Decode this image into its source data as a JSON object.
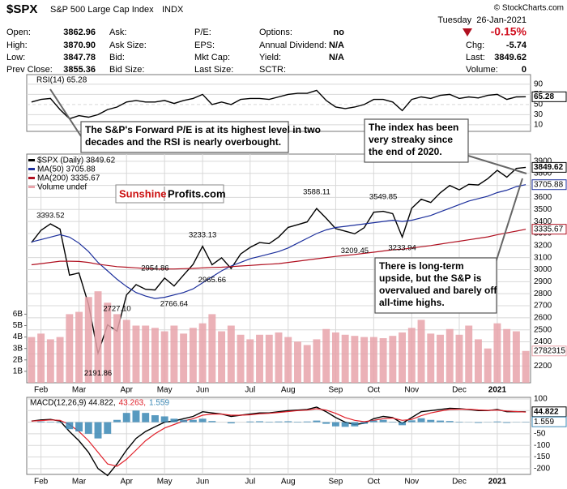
{
  "header": {
    "symbol": "$SPX",
    "name": "S&P 500 Large Cap Index",
    "exchange": "INDX",
    "copyright": "© StockCharts.com",
    "date": "Tuesday  26-Jan-2021",
    "change_pct": "-0.15%",
    "columns": [
      {
        "labels": [
          "Open:",
          "High:",
          "Low:",
          "Prev Close:"
        ],
        "values": [
          "3862.96",
          "3870.90",
          "3847.78",
          "3855.36"
        ]
      },
      {
        "labels": [
          "Ask:",
          "Ask Size:",
          "Bid:",
          "Bid Size:"
        ],
        "values": []
      },
      {
        "labels": [
          "P/E:",
          "EPS:",
          "Mkt Cap:",
          "Last Size:"
        ],
        "values": []
      },
      {
        "labels": [
          "Options:",
          "Annual Dividend:",
          "Yield:",
          "SCTR:"
        ],
        "values": [
          "no",
          "N/A",
          "N/A"
        ]
      },
      {
        "labels": [
          "Chg:",
          "Last:",
          "Volume:"
        ],
        "values": [
          "-5.74",
          "3849.62",
          "0"
        ]
      }
    ]
  },
  "watermark": [
    "Sunshine",
    "Profits.com"
  ],
  "callouts": [
    {
      "lines": [
        "The S&P's Forward P/E is at its highest level in two",
        "decades and the RSI is nearly overbought."
      ]
    },
    {
      "lines": [
        "The index has been",
        "very streaky since",
        "the end of 2020."
      ]
    },
    {
      "lines": [
        "There is long-term",
        "upside, but the S&P is",
        "overvalued and barely off",
        "all-time highs."
      ]
    }
  ],
  "chart_data": [
    {
      "type": "line",
      "title": "RSI(14) 65.28",
      "ylim": [
        -3,
        109
      ],
      "yticks": [
        90,
        70,
        50,
        30,
        10
      ],
      "grid": true,
      "series": [
        {
          "color": "#000000",
          "values": [
            55,
            60,
            62,
            40,
            22,
            28,
            25,
            30,
            40,
            45,
            55,
            58,
            55,
            55,
            58,
            52,
            58,
            62,
            70,
            50,
            55,
            50,
            60,
            62,
            62,
            60,
            65,
            70,
            72,
            72,
            78,
            58,
            45,
            42,
            45,
            50,
            60,
            60,
            55,
            38,
            60,
            65,
            62,
            68,
            70,
            62,
            65,
            63,
            68,
            70,
            60,
            65,
            65.28
          ]
        }
      ]
    },
    {
      "type": "line",
      "ylim": [
        2060,
        3960
      ],
      "yticks": [
        2200,
        2300,
        2400,
        2500,
        2600,
        2700,
        2800,
        2900,
        3000,
        3100,
        3200,
        3300,
        3400,
        3500,
        3600,
        3700,
        3800,
        3900
      ],
      "grid": true,
      "y2lim": [
        0,
        20
      ],
      "y2ticks": [
        {
          "value": 1,
          "label": "1B"
        },
        {
          "value": 2,
          "label": "2B"
        },
        {
          "value": 3,
          "label": "3B"
        },
        {
          "value": 4,
          "label": "4B"
        },
        {
          "value": 5,
          "label": "5B"
        },
        {
          "value": 6,
          "label": "6B"
        }
      ],
      "categories": [
        null,
        "Feb",
        null,
        null,
        null,
        "Mar",
        null,
        null,
        null,
        null,
        "Apr",
        null,
        null,
        null,
        "May",
        null,
        null,
        null,
        "Jun",
        null,
        null,
        null,
        null,
        "Jul",
        null,
        null,
        null,
        "Aug",
        null,
        null,
        null,
        null,
        "Sep",
        null,
        null,
        null,
        "Oct",
        null,
        null,
        null,
        "Nov",
        null,
        null,
        null,
        null,
        "Dec",
        null,
        null,
        null,
        "2021",
        null,
        null,
        null
      ],
      "series": [
        {
          "name": "$SPX (Daily) 3849.62",
          "color": "#000000",
          "values": [
            3225,
            3327,
            3380,
            3337,
            2954,
            2972,
            2711,
            2305,
            2541,
            2489,
            2790,
            2875,
            2837,
            2831,
            2930,
            2864,
            2955,
            3044,
            3194,
            3041,
            3098,
            3009,
            3130,
            3185,
            3225,
            3216,
            3271,
            3351,
            3373,
            3397,
            3508,
            3427,
            3341,
            3319,
            3298,
            3348,
            3477,
            3484,
            3465,
            3270,
            3510,
            3585,
            3558,
            3638,
            3699,
            3663,
            3709,
            3703,
            3756,
            3825,
            3768,
            3841,
            3849.62
          ]
        },
        {
          "name": "MA(50) 3705.88",
          "color": "#1c2f9c",
          "values": [
            3230,
            3250,
            3270,
            3290,
            3270,
            3220,
            3150,
            3060,
            2990,
            2920,
            2860,
            2810,
            2780,
            2760,
            2770,
            2790,
            2810,
            2840,
            2890,
            2940,
            2990,
            3030,
            3060,
            3090,
            3110,
            3130,
            3150,
            3180,
            3220,
            3260,
            3300,
            3330,
            3350,
            3360,
            3370,
            3380,
            3390,
            3400,
            3410,
            3400,
            3410,
            3430,
            3450,
            3480,
            3510,
            3540,
            3570,
            3590,
            3610,
            3640,
            3660,
            3690,
            3705.88
          ]
        },
        {
          "name": "MA(200) 3335.67",
          "color": "#b01020",
          "values": [
            3040,
            3050,
            3060,
            3070,
            3070,
            3068,
            3060,
            3045,
            3035,
            3025,
            3020,
            3015,
            3010,
            3005,
            3005,
            3005,
            3008,
            3010,
            3015,
            3018,
            3020,
            3025,
            3030,
            3035,
            3040,
            3045,
            3050,
            3060,
            3070,
            3080,
            3090,
            3100,
            3110,
            3118,
            3126,
            3135,
            3145,
            3155,
            3165,
            3170,
            3180,
            3190,
            3200,
            3212,
            3224,
            3236,
            3248,
            3260,
            3272,
            3290,
            3305,
            3320,
            3335.67
          ]
        },
        {
          "name": "Volume undef",
          "type": "bar",
          "axis": "y2",
          "color": "#e8a3aa",
          "last_label": "2782315",
          "values": [
            4.0,
            4.3,
            3.8,
            4.0,
            6.0,
            6.2,
            7.5,
            8.0,
            7.0,
            6.0,
            5.5,
            5.0,
            5.0,
            4.8,
            4.5,
            5.0,
            4.3,
            4.8,
            5.2,
            6.0,
            4.5,
            5.0,
            4.2,
            3.8,
            4.2,
            4.2,
            4.4,
            4.0,
            3.6,
            3.3,
            3.8,
            4.7,
            4.4,
            4.2,
            4.1,
            4.0,
            4.0,
            3.9,
            4.1,
            4.4,
            4.8,
            5.5,
            4.3,
            4.2,
            4.7,
            4.2,
            5.0,
            3.8,
            3.0,
            5.2,
            4.7,
            4.5,
            2.782315
          ]
        }
      ],
      "annotations": [
        {
          "value": 3393.52,
          "label": "3393.52"
        },
        {
          "value": 2191.86,
          "label": "2191.86"
        },
        {
          "value": 2727.1,
          "label": "2727.10"
        },
        {
          "value": 2954.86,
          "label": "2954.86"
        },
        {
          "value": 2766.64,
          "label": "2766.64"
        },
        {
          "value": 3233.13,
          "label": "3233.13"
        },
        {
          "value": 2965.66,
          "label": "2965.66"
        },
        {
          "value": 3588.11,
          "label": "3588.11"
        },
        {
          "value": 3209.45,
          "label": "3209.45"
        },
        {
          "value": 3549.85,
          "label": "3549.85"
        },
        {
          "value": 3233.94,
          "label": "3233.94"
        }
      ]
    },
    {
      "type": "line",
      "ylim": [
        -225,
        107
      ],
      "yticks": [
        100,
        50,
        0,
        -50,
        -100,
        -150,
        -200
      ],
      "grid": true,
      "categories": [
        null,
        "Feb",
        null,
        null,
        null,
        "Mar",
        null,
        null,
        null,
        null,
        "Apr",
        null,
        null,
        null,
        "May",
        null,
        null,
        null,
        "Jun",
        null,
        null,
        null,
        null,
        "Jul",
        null,
        null,
        null,
        "Aug",
        null,
        null,
        null,
        null,
        "Sep",
        null,
        null,
        null,
        "Oct",
        null,
        null,
        null,
        "Nov",
        null,
        null,
        null,
        null,
        "Dec",
        null,
        null,
        null,
        "2021",
        null,
        null,
        null
      ],
      "series": [
        {
          "name": "MACD(12,26,9) 44.822,",
          "color": "#000000",
          "values": [
            5,
            10,
            12,
            5,
            -40,
            -80,
            -130,
            -200,
            -230,
            -180,
            -120,
            -70,
            -40,
            -20,
            0,
            5,
            15,
            25,
            45,
            40,
            35,
            25,
            30,
            35,
            40,
            40,
            45,
            50,
            52,
            55,
            65,
            45,
            20,
            0,
            -10,
            -5,
            15,
            25,
            20,
            -5,
            20,
            45,
            50,
            55,
            60,
            58,
            55,
            50,
            50,
            55,
            45,
            45,
            44.822
          ]
        },
        {
          "name": "43.263,",
          "color": "#e0202a",
          "values": [
            5,
            7,
            10,
            8,
            -10,
            -40,
            -80,
            -130,
            -180,
            -190,
            -160,
            -120,
            -80,
            -50,
            -25,
            -10,
            5,
            15,
            30,
            35,
            35,
            30,
            30,
            32,
            36,
            38,
            42,
            46,
            50,
            52,
            58,
            52,
            38,
            20,
            8,
            2,
            8,
            15,
            18,
            8,
            12,
            28,
            40,
            48,
            55,
            56,
            56,
            53,
            51,
            52,
            48,
            46,
            43.263
          ]
        },
        {
          "name": "1.559",
          "type": "bar",
          "color": "#3b88b5",
          "values": [
            0,
            3,
            2,
            -3,
            -30,
            -40,
            -50,
            -70,
            -50,
            10,
            40,
            50,
            40,
            30,
            25,
            15,
            10,
            10,
            15,
            5,
            0,
            -5,
            0,
            3,
            4,
            2,
            3,
            4,
            2,
            3,
            7,
            -7,
            -18,
            -20,
            -18,
            -7,
            7,
            10,
            2,
            -13,
            8,
            17,
            10,
            7,
            5,
            2,
            -1,
            -3,
            -1,
            3,
            -3,
            -1,
            1.559
          ]
        }
      ]
    }
  ]
}
